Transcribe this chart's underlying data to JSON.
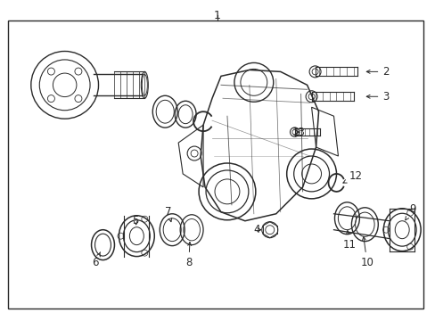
{
  "bg_color": "#ffffff",
  "border_color": "#444444",
  "line_color": "#2a2a2a",
  "fig_width": 4.89,
  "fig_height": 3.6,
  "dpi": 100
}
